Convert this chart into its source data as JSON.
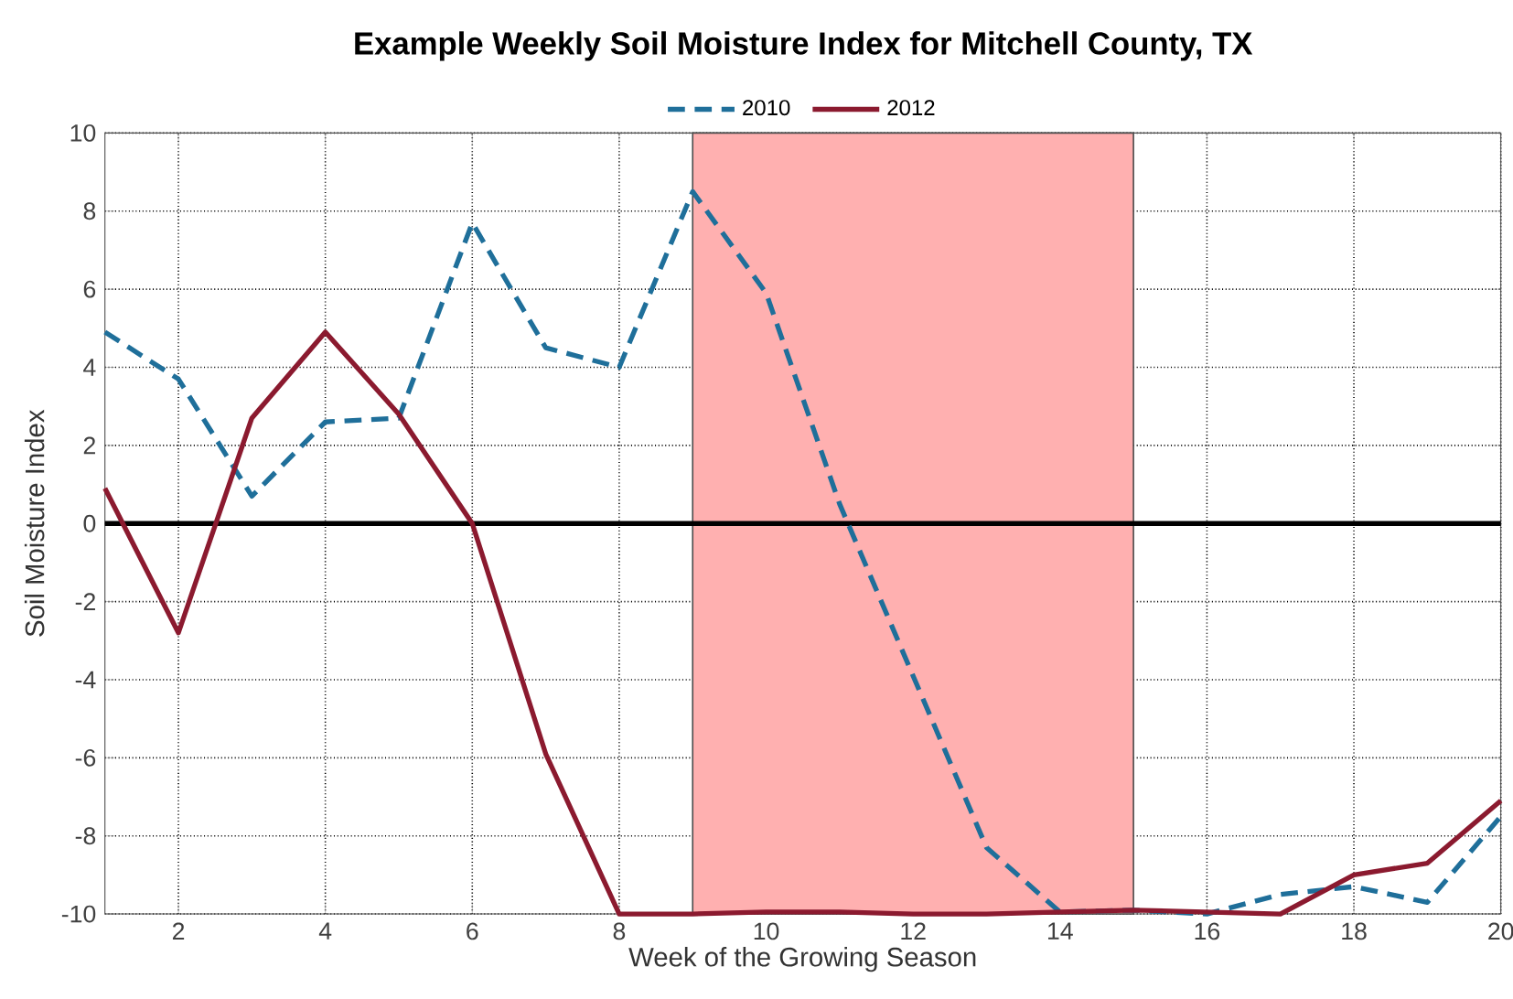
{
  "chart_data": {
    "type": "line",
    "title": "Example Weekly Soil Moisture Index for Mitchell County, TX",
    "xlabel": "Week of the Growing Season",
    "ylabel": "Soil Moisture Index",
    "x": [
      1,
      2,
      3,
      4,
      5,
      6,
      7,
      8,
      9,
      10,
      11,
      12,
      13,
      14,
      15,
      16,
      17,
      18,
      19,
      20
    ],
    "series": [
      {
        "name": "2010",
        "color": "#1f6f9a",
        "line_style": "dashed",
        "values": [
          4.9,
          3.7,
          0.7,
          2.6,
          2.7,
          7.7,
          4.5,
          4.0,
          8.5,
          5.9,
          0.5,
          -3.9,
          -8.3,
          -9.95,
          -9.9,
          -10,
          -9.5,
          -9.3,
          -9.7,
          -7.5
        ]
      },
      {
        "name": "2012",
        "color": "#8b1a2f",
        "line_style": "solid",
        "values": [
          0.9,
          -2.8,
          2.7,
          4.9,
          2.8,
          0,
          -5.9,
          -10,
          -10,
          -9.95,
          -9.95,
          -10,
          -10,
          -9.95,
          -9.9,
          -9.95,
          -10,
          -9.0,
          -8.7,
          -7.1
        ]
      }
    ],
    "xlim": [
      1,
      20
    ],
    "ylim": [
      -10,
      10
    ],
    "xticks": [
      2,
      4,
      6,
      8,
      10,
      12,
      14,
      16,
      18,
      20
    ],
    "yticks": [
      -10,
      -8,
      -6,
      -4,
      -2,
      0,
      2,
      4,
      6,
      8,
      10
    ],
    "bands": [
      {
        "axis": "x",
        "from": 9,
        "to": 15,
        "color": "#ffb0b0"
      }
    ],
    "ref_lines": [
      {
        "axis": "y",
        "value": 0,
        "color": "#000000"
      }
    ],
    "grid": true,
    "legend": "top"
  }
}
